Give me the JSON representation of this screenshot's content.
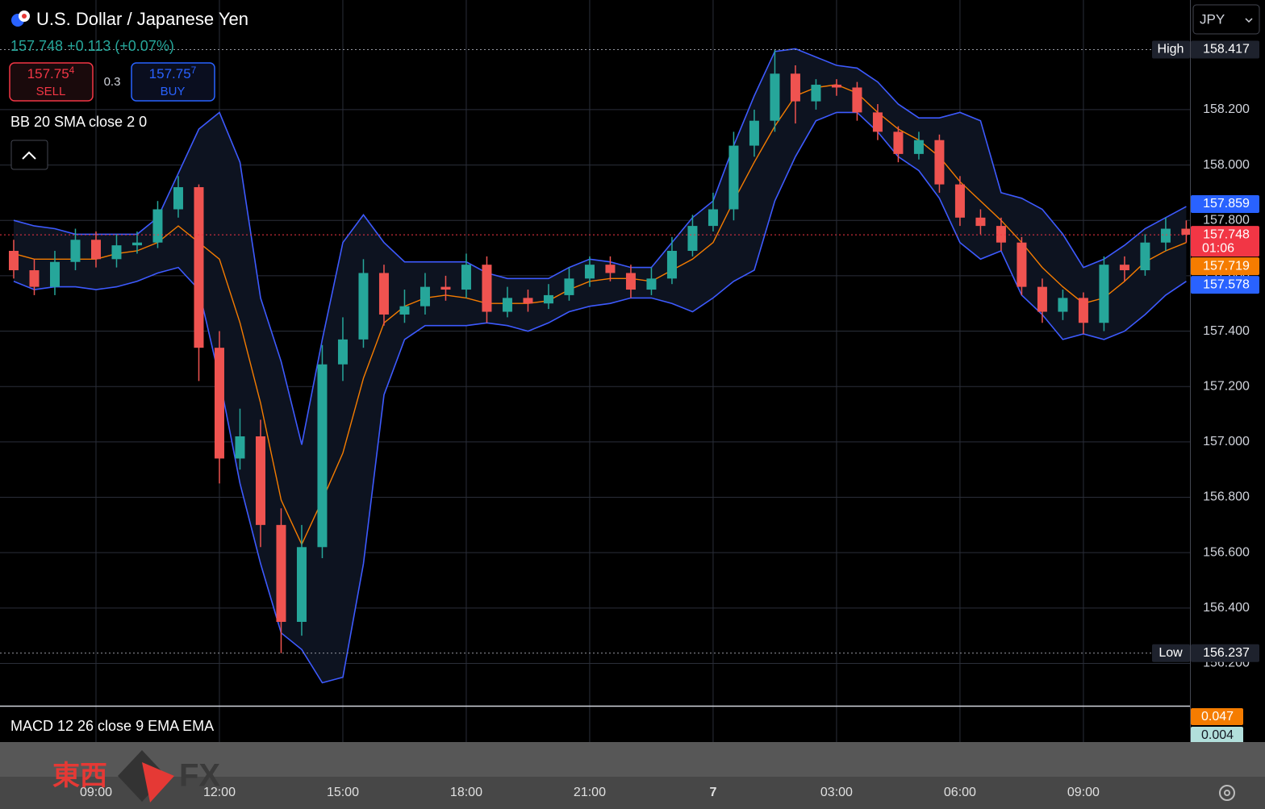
{
  "chart_data": {
    "type": "candlestick",
    "title": "U.S. Dollar / Japanese Yen",
    "subtitle": "157.748 +0.113 (+0.07%)",
    "currency": "JPY",
    "x": [
      7,
      7.5,
      8,
      8.5,
      9,
      9.5,
      10,
      10.5,
      11,
      11.5,
      12,
      12.5,
      13,
      13.5,
      14,
      14.5,
      15,
      15.5,
      16,
      16.5,
      17,
      17.5,
      18,
      18.5,
      19,
      19.5,
      20,
      20.5,
      21,
      21.5,
      22,
      22.5,
      23,
      23.5,
      24,
      24.5,
      25,
      25.5,
      26,
      26.5,
      27,
      27.5,
      28,
      28.5,
      29,
      29.5,
      30,
      30.5,
      31,
      31.5,
      32,
      32.5,
      33,
      33.5,
      34,
      34.5,
      35,
      35.5
    ],
    "open": [
      157.69,
      157.62,
      157.56,
      157.65,
      157.73,
      157.66,
      157.71,
      157.72,
      157.84,
      157.92,
      157.34,
      156.94,
      157.02,
      156.7,
      156.35,
      156.62,
      157.28,
      157.37,
      157.61,
      157.46,
      157.49,
      157.56,
      157.55,
      157.64,
      157.47,
      157.52,
      157.5,
      157.53,
      157.59,
      157.64,
      157.61,
      157.55,
      157.59,
      157.69,
      157.78,
      157.84,
      158.07,
      158.16,
      158.33,
      158.23,
      158.29,
      158.28,
      158.19,
      158.12,
      158.04,
      158.09,
      157.93,
      157.81,
      157.78,
      157.72,
      157.56,
      157.47,
      157.52,
      157.43,
      157.64,
      157.62,
      157.72,
      157.77
    ],
    "high": [
      157.73,
      157.66,
      157.69,
      157.77,
      157.76,
      157.75,
      157.76,
      157.87,
      157.96,
      157.93,
      157.4,
      157.12,
      157.08,
      156.76,
      156.7,
      157.35,
      157.45,
      157.66,
      157.64,
      157.55,
      157.61,
      157.6,
      157.68,
      157.67,
      157.56,
      157.55,
      157.57,
      157.63,
      157.67,
      157.67,
      157.64,
      157.63,
      157.74,
      157.82,
      157.9,
      158.12,
      158.2,
      158.417,
      158.36,
      158.31,
      158.31,
      158.3,
      158.22,
      158.14,
      158.12,
      158.11,
      157.96,
      157.84,
      157.81,
      157.74,
      157.59,
      157.55,
      157.54,
      157.67,
      157.67,
      157.75,
      157.81,
      157.8
    ],
    "low": [
      157.59,
      157.53,
      157.53,
      157.62,
      157.63,
      157.63,
      157.68,
      157.7,
      157.81,
      157.22,
      156.85,
      156.9,
      156.62,
      156.237,
      156.3,
      156.58,
      157.22,
      157.34,
      157.42,
      157.43,
      157.46,
      157.51,
      157.52,
      157.43,
      157.45,
      157.47,
      157.48,
      157.51,
      157.56,
      157.58,
      157.52,
      157.53,
      157.57,
      157.67,
      157.76,
      157.8,
      158.03,
      158.12,
      158.15,
      158.2,
      158.25,
      158.16,
      158.09,
      158.01,
      158.02,
      157.9,
      157.78,
      157.75,
      157.69,
      157.53,
      157.43,
      157.44,
      157.39,
      157.4,
      157.58,
      157.6,
      157.69,
      157.72
    ],
    "close": [
      157.62,
      157.56,
      157.65,
      157.73,
      157.66,
      157.71,
      157.72,
      157.84,
      157.92,
      157.34,
      156.94,
      157.02,
      156.7,
      156.35,
      156.62,
      157.28,
      157.37,
      157.61,
      157.46,
      157.49,
      157.56,
      157.55,
      157.64,
      157.47,
      157.52,
      157.5,
      157.53,
      157.59,
      157.64,
      157.61,
      157.55,
      157.59,
      157.69,
      157.78,
      157.84,
      158.07,
      158.16,
      158.33,
      158.23,
      158.29,
      158.28,
      158.19,
      158.12,
      158.04,
      158.09,
      157.93,
      157.81,
      157.78,
      157.72,
      157.56,
      157.47,
      157.52,
      157.43,
      157.64,
      157.62,
      157.72,
      157.77,
      157.748
    ],
    "up_color": "#26a69a",
    "down_color": "#ef5350",
    "bands": {
      "label": "BB 20 SMA close 2 0",
      "band_color": "#3d5afe",
      "basis_color": "#f57c00",
      "upper": [
        157.8,
        157.78,
        157.77,
        157.75,
        157.75,
        157.75,
        157.75,
        157.81,
        157.97,
        158.13,
        158.19,
        158.01,
        157.52,
        157.29,
        156.99,
        157.37,
        157.72,
        157.82,
        157.72,
        157.65,
        157.65,
        157.65,
        157.65,
        157.61,
        157.59,
        157.59,
        157.59,
        157.63,
        157.66,
        157.65,
        157.63,
        157.63,
        157.72,
        157.81,
        157.87,
        158.07,
        158.25,
        158.41,
        158.42,
        158.39,
        158.36,
        158.35,
        158.3,
        158.22,
        158.17,
        158.17,
        158.19,
        158.16,
        157.9,
        157.88,
        157.84,
        157.75,
        157.63,
        157.66,
        157.71,
        157.77,
        157.81,
        157.85
      ],
      "basis": [
        157.68,
        157.66,
        157.66,
        157.66,
        157.66,
        157.68,
        157.69,
        157.72,
        157.78,
        157.72,
        157.66,
        157.43,
        157.14,
        156.79,
        156.63,
        156.79,
        156.96,
        157.23,
        157.43,
        157.49,
        157.52,
        157.53,
        157.52,
        157.5,
        157.5,
        157.5,
        157.51,
        157.55,
        157.58,
        157.59,
        157.59,
        157.58,
        157.62,
        157.66,
        157.72,
        157.87,
        158.01,
        158.14,
        158.25,
        158.28,
        158.29,
        158.26,
        158.19,
        158.13,
        158.09,
        158.03,
        157.94,
        157.87,
        157.8,
        157.72,
        157.63,
        157.56,
        157.5,
        157.52,
        157.58,
        157.65,
        157.69,
        157.72
      ],
      "lower": [
        157.58,
        157.55,
        157.56,
        157.56,
        157.55,
        157.56,
        157.58,
        157.61,
        157.63,
        157.55,
        157.23,
        156.85,
        156.56,
        156.31,
        156.25,
        156.13,
        156.15,
        156.56,
        157.17,
        157.37,
        157.42,
        157.42,
        157.42,
        157.43,
        157.42,
        157.4,
        157.43,
        157.47,
        157.49,
        157.5,
        157.52,
        157.52,
        157.5,
        157.47,
        157.52,
        157.58,
        157.62,
        157.87,
        158.03,
        158.16,
        158.19,
        158.19,
        158.12,
        158.03,
        157.98,
        157.88,
        157.72,
        157.66,
        157.69,
        157.53,
        157.46,
        157.37,
        157.39,
        157.37,
        157.4,
        157.46,
        157.53,
        157.58
      ]
    },
    "xlim": [
      6.667,
      35.59
    ],
    "xticks": [
      {
        "value": 9,
        "label": "09:00"
      },
      {
        "value": 12,
        "label": "12:00"
      },
      {
        "value": 15,
        "label": "15:00"
      },
      {
        "value": 18,
        "label": "18:00"
      },
      {
        "value": 21,
        "label": "21:00"
      },
      {
        "value": 24,
        "label": "7"
      },
      {
        "value": 27,
        "label": "03:00"
      },
      {
        "value": 30,
        "label": "06:00"
      },
      {
        "value": 33,
        "label": "09:00"
      }
    ],
    "ylim": [
      156.047,
      158.596
    ],
    "yticks": [
      {
        "value": 156.2,
        "label": "156.200"
      },
      {
        "value": 156.4,
        "label": "156.400"
      },
      {
        "value": 156.6,
        "label": "156.600"
      },
      {
        "value": 156.8,
        "label": "156.800"
      },
      {
        "value": 157.0,
        "label": "157.000"
      },
      {
        "value": 157.2,
        "label": "157.200"
      },
      {
        "value": 157.4,
        "label": "157.400"
      },
      {
        "value": 157.6,
        "label": "157.600"
      },
      {
        "value": 157.8,
        "label": "157.800"
      },
      {
        "value": 158.0,
        "label": "158.000"
      },
      {
        "value": 158.2,
        "label": "158.200"
      }
    ],
    "grid": true,
    "high_marker": {
      "label": "High",
      "value": 158.417
    },
    "low_marker": {
      "label": "Low",
      "value": 156.237
    },
    "last_price": {
      "value": 157.748,
      "countdown": "01:06",
      "color": "#f23645"
    },
    "price_badges": [
      {
        "value": 157.859,
        "color": "#2962ff"
      },
      {
        "value": 157.748,
        "color": "#f23645"
      },
      {
        "value": 157.719,
        "color": "#f57c00"
      },
      {
        "value": 157.578,
        "color": "#2962ff"
      }
    ],
    "trade": {
      "sell_price": "157.75",
      "sell_pip": "4",
      "sell_label": "SELL",
      "spread": "0.3",
      "buy_price": "157.75",
      "buy_pip": "7",
      "buy_label": "BUY"
    },
    "macd": {
      "label": "MACD 12 26 close 9 EMA EMA",
      "badges": [
        {
          "value": 0.047,
          "color": "#f57c00",
          "text_color": "#ffffff"
        },
        {
          "value": 0.004,
          "color": "#b2dfdb",
          "text_color": "#131722"
        }
      ]
    },
    "logo": {
      "kanji": "東西",
      "latin": "FX"
    }
  }
}
